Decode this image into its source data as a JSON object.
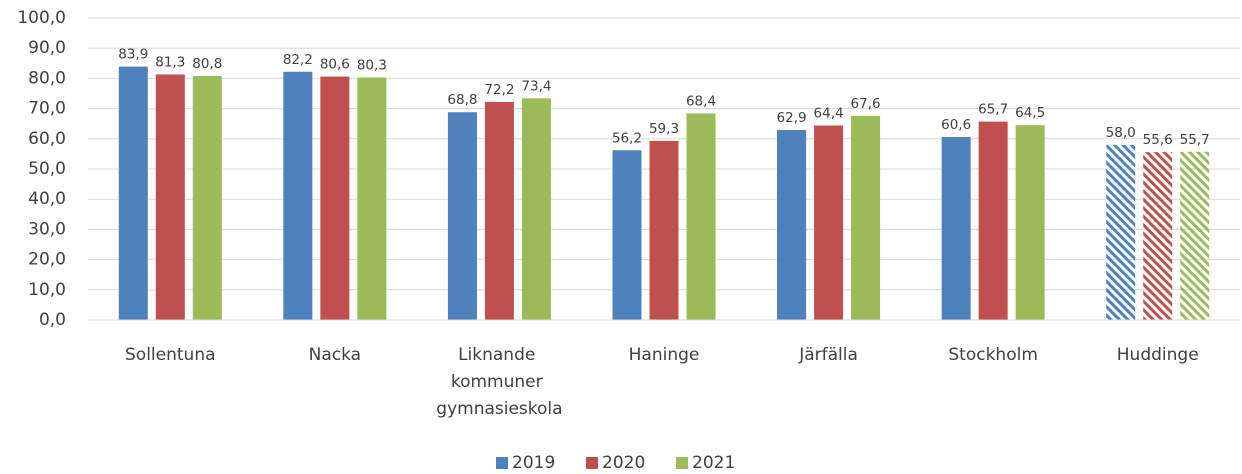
{
  "chart_data": {
    "type": "bar",
    "categories": [
      "Sollentuna",
      "Nacka",
      "Liknande kommuner gymnasieskola",
      "Haninge",
      "Järfälla",
      "Stockholm",
      "Huddinge"
    ],
    "series": [
      {
        "name": "2019",
        "color": "#4f81bd",
        "values": [
          83.9,
          82.2,
          68.8,
          56.2,
          62.9,
          60.6,
          58.0
        ],
        "value_labels": [
          "83,9",
          "82,2",
          "68,8",
          "56,2",
          "62,9",
          "60,6",
          "58,0"
        ]
      },
      {
        "name": "2020",
        "color": "#c0504d",
        "values": [
          81.3,
          80.6,
          72.2,
          59.3,
          64.4,
          65.7,
          55.6
        ],
        "value_labels": [
          "81,3",
          "80,6",
          "72,2",
          "59,3",
          "64,4",
          "65,7",
          "55,6"
        ]
      },
      {
        "name": "2021",
        "color": "#9bbb59",
        "values": [
          80.8,
          80.3,
          73.4,
          68.4,
          67.6,
          64.5,
          55.7
        ],
        "value_labels": [
          "80,8",
          "80,3",
          "73,4",
          "68,4",
          "67,6",
          "64,5",
          "55,7"
        ]
      }
    ],
    "hatched": [
      false,
      false,
      false,
      false,
      false,
      false,
      true
    ],
    "ylim": [
      0,
      100
    ],
    "yticks": [
      {
        "value": 0,
        "label": "0,0"
      },
      {
        "value": 10,
        "label": "10,0"
      },
      {
        "value": 20,
        "label": "20,0"
      },
      {
        "value": 30,
        "label": "30,0"
      },
      {
        "value": 40,
        "label": "40,0"
      },
      {
        "value": 50,
        "label": "50,0"
      },
      {
        "value": 60,
        "label": "60,0"
      },
      {
        "value": 70,
        "label": "70,0"
      },
      {
        "value": 80,
        "label": "80,0"
      },
      {
        "value": 90,
        "label": "90,0"
      },
      {
        "value": 100,
        "label": "100,0"
      }
    ],
    "grid": true,
    "legend": "bottom"
  }
}
